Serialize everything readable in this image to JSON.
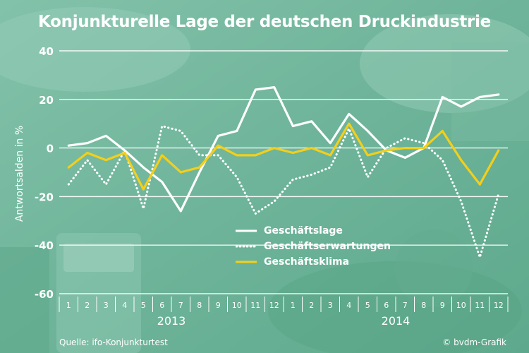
{
  "chart_data": {
    "type": "line",
    "title": "Konjunkturelle Lage der deutschen Druckindustrie",
    "ylabel": "Antwortsalden in %",
    "ylim": [
      -60,
      40
    ],
    "yticks": [
      40,
      20,
      0,
      -20,
      -40,
      -60
    ],
    "ytick_labels": [
      "40",
      "20",
      "0",
      "-20",
      "-40",
      "-60"
    ],
    "grid": true,
    "legend_position": "center",
    "categories": [
      "1",
      "2",
      "3",
      "4",
      "5",
      "6",
      "7",
      "8",
      "9",
      "10",
      "11",
      "12",
      "1",
      "2",
      "3",
      "4",
      "5",
      "6",
      "7",
      "8",
      "9",
      "10",
      "11",
      "12"
    ],
    "year_labels": [
      "2013",
      "2014"
    ],
    "series": [
      {
        "name": "Geschäftslage",
        "style": "solid",
        "color": "#ffffff",
        "values": [
          1,
          2,
          5,
          -1,
          -8,
          -14,
          -26,
          -10,
          5,
          7,
          24,
          25,
          9,
          11,
          2,
          14,
          7,
          -1,
          -4,
          0,
          21,
          17,
          21,
          22
        ]
      },
      {
        "name": "Geschäftserwartungen",
        "style": "dotted",
        "color": "#ffffff",
        "values": [
          -15,
          -5,
          -15,
          -1,
          -25,
          9,
          7,
          -3,
          -3,
          -12,
          -27,
          -22,
          -13,
          -11,
          -8,
          8,
          -12,
          0,
          4,
          2,
          -5,
          -22,
          -45,
          -19
        ]
      },
      {
        "name": "Geschäftsklima",
        "style": "solid",
        "color": "#f3cf1a",
        "values": [
          -8,
          -2,
          -5,
          -2,
          -17,
          -3,
          -10,
          -8,
          1,
          -3,
          -3,
          0,
          -2,
          0,
          -3,
          10,
          -3,
          -1,
          0,
          0,
          7,
          -5,
          -15,
          -1
        ]
      }
    ]
  },
  "footer": {
    "source": "Quelle: ifo-Konjunkturtest",
    "credit": "© bvdm-Grafik"
  }
}
